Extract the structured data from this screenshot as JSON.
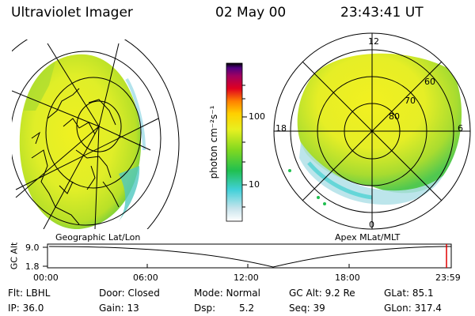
{
  "header": {
    "instrument": "Ultraviolet Imager",
    "date": "02 May 00",
    "time": "23:43:41 UT"
  },
  "colorbar": {
    "unit_label": "photon cm⁻²s⁻¹",
    "ticks": [
      "100",
      "10"
    ],
    "colors": [
      "#ffffff",
      "#c8e4ec",
      "#40d0d8",
      "#20c050",
      "#80d820",
      "#e8f020",
      "#ffd000",
      "#ff8000",
      "#e00020",
      "#a00060",
      "#500080",
      "#000000"
    ]
  },
  "geo_panel": {
    "label": "Geographic Lat/Lon"
  },
  "polar_panel": {
    "label": "Apex MLat/MLT",
    "mlt_labels": {
      "top": "12",
      "left": "18",
      "right": "6",
      "bottom": "0"
    },
    "mlat_labels": [
      "60",
      "70",
      "80"
    ]
  },
  "altitude_plot": {
    "ylabel": "GC Alt",
    "yticks": [
      "9.0",
      "1.8"
    ],
    "xticks": [
      "00:00",
      "06:00",
      "12:00",
      "18:00",
      "23:59"
    ]
  },
  "info": {
    "row1": [
      "Flt: LBHL",
      "Door: Closed",
      "Mode: Normal",
      "GC Alt: 9.2 Re",
      "GLat: 85.1"
    ],
    "row2": [
      "IP: 36.0",
      "Gain: 13",
      "Dsp:",
      "5.2",
      "Seq: 39",
      "GLon: 317.4"
    ]
  }
}
